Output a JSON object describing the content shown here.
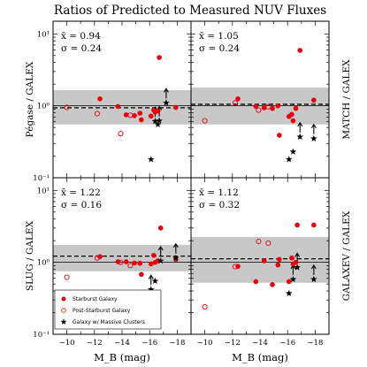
{
  "figure": {
    "title": "Ratios of Predicted to Measured NUV Fluxes"
  },
  "chart_data": [
    {
      "type": "scatter",
      "panel": "top-left",
      "ylabel": "Pégase / GALEX",
      "xlabel": "",
      "xlim": [
        -9,
        -19
      ],
      "ylim": [
        0.1,
        15
      ],
      "yscale": "log",
      "band": [
        0.55,
        1.65
      ],
      "solid_line": 1.0,
      "dashed_line": 0.94,
      "stats": {
        "mean": "x̄ = 0.94",
        "sigma": "σ = 0.24"
      },
      "series": [
        {
          "marker": "filled-circle",
          "color": "#e8000b",
          "points": [
            [
              -12.4,
              1.25
            ],
            [
              -13.7,
              0.98
            ],
            [
              -14.3,
              0.75
            ],
            [
              -14.9,
              0.73
            ],
            [
              -15.3,
              0.79
            ],
            [
              -15.4,
              0.64
            ],
            [
              -16.1,
              0.72
            ],
            [
              -16.3,
              0.87
            ],
            [
              -16.4,
              0.82
            ],
            [
              -16.6,
              0.85
            ],
            [
              -16.7,
              4.7
            ],
            [
              -17.9,
              0.95
            ]
          ]
        },
        {
          "marker": "open-circle",
          "color": "#e8000b",
          "points": [
            [
              -10.0,
              0.95
            ],
            [
              -12.2,
              0.78
            ],
            [
              -14.6,
              0.74
            ],
            [
              -13.9,
              0.41
            ]
          ]
        },
        {
          "marker": "star",
          "color": "#000000",
          "points": [
            [
              -16.1,
              0.18
            ],
            [
              -16.4,
              0.61
            ],
            [
              -16.6,
              0.55
            ],
            [
              -16.7,
              0.62
            ],
            [
              -17.2,
              1.1
            ]
          ]
        }
      ],
      "upper_arrows_x": [
        -16.4,
        -16.7,
        -17.2
      ],
      "legend": "none"
    },
    {
      "type": "scatter",
      "panel": "top-right",
      "ylabel": "MATCH / GALEX",
      "xlabel": "",
      "xlim": [
        -9,
        -19
      ],
      "ylim": [
        0.1,
        15
      ],
      "yscale": "log",
      "band": [
        0.55,
        1.8
      ],
      "solid_line": 1.0,
      "dashed_line": 1.05,
      "stats": {
        "mean": "x̄ = 1.05",
        "sigma": "σ = 0.24"
      },
      "series": [
        {
          "marker": "filled-circle",
          "color": "#e8000b",
          "points": [
            [
              -12.4,
              1.25
            ],
            [
              -13.7,
              0.98
            ],
            [
              -14.3,
              0.94
            ],
            [
              -14.9,
              0.92
            ],
            [
              -15.3,
              1.0
            ],
            [
              -15.4,
              0.39
            ],
            [
              -16.1,
              0.71
            ],
            [
              -16.3,
              0.76
            ],
            [
              -16.4,
              0.62
            ],
            [
              -16.6,
              0.92
            ],
            [
              -16.9,
              5.9
            ],
            [
              -17.9,
              1.2
            ]
          ]
        },
        {
          "marker": "open-circle",
          "color": "#e8000b",
          "points": [
            [
              -10.0,
              0.62
            ],
            [
              -12.2,
              1.1
            ],
            [
              -13.9,
              0.87
            ],
            [
              -14.6,
              0.97
            ]
          ]
        },
        {
          "marker": "star",
          "color": "#000000",
          "points": [
            [
              -16.1,
              0.18
            ],
            [
              -16.4,
              0.23
            ],
            [
              -16.9,
              0.37
            ],
            [
              -17.9,
              0.35
            ]
          ]
        }
      ],
      "upper_arrows_x": [
        -16.9,
        -17.9
      ],
      "legend": "none"
    },
    {
      "type": "scatter",
      "panel": "bottom-left",
      "ylabel": "SLUG / GALEX",
      "xlabel": "M_B (mag)",
      "xlim": [
        -9,
        -19
      ],
      "ylim": [
        0.1,
        15
      ],
      "yscale": "log",
      "band": [
        0.75,
        1.75
      ],
      "solid_line": 1.0,
      "dashed_line": 1.22,
      "stats": {
        "mean": "x̄ = 1.22",
        "sigma": "σ = 0.16"
      },
      "series": [
        {
          "marker": "filled-circle",
          "color": "#e8000b",
          "points": [
            [
              -12.4,
              1.2
            ],
            [
              -13.7,
              1.02
            ],
            [
              -14.3,
              1.02
            ],
            [
              -14.9,
              0.98
            ],
            [
              -15.3,
              0.97
            ],
            [
              -15.4,
              0.68
            ],
            [
              -16.1,
              0.95
            ],
            [
              -16.3,
              1.25
            ],
            [
              -16.4,
              1.0
            ],
            [
              -16.6,
              1.05
            ],
            [
              -16.8,
              3.0
            ],
            [
              -17.9,
              1.1
            ]
          ]
        },
        {
          "marker": "open-circle",
          "color": "#e8000b",
          "points": [
            [
              -10.0,
              0.62
            ],
            [
              -12.2,
              1.15
            ],
            [
              -13.9,
              1.0
            ],
            [
              -14.6,
              0.9
            ]
          ]
        },
        {
          "marker": "star",
          "color": "#000000",
          "points": [
            [
              -16.1,
              0.42
            ],
            [
              -16.4,
              0.55
            ],
            [
              -16.8,
              1.05
            ],
            [
              -17.9,
              1.15
            ]
          ]
        }
      ],
      "upper_arrows_x": [
        -16.1,
        -16.8,
        -17.9
      ],
      "legend": "lower-left"
    },
    {
      "type": "scatter",
      "panel": "bottom-right",
      "ylabel": "GALAXEV / GALEX",
      "xlabel": "M_B (mag)",
      "xlim": [
        -9,
        -19
      ],
      "ylim": [
        0.1,
        15
      ],
      "yscale": "log",
      "band": [
        0.52,
        2.25
      ],
      "solid_line": 1.0,
      "dashed_line": 1.12,
      "stats": {
        "mean": "x̄ = 1.12",
        "sigma": "σ = 0.32"
      },
      "series": [
        {
          "marker": "filled-circle",
          "color": "#e8000b",
          "points": [
            [
              -12.4,
              0.88
            ],
            [
              -13.7,
              0.54
            ],
            [
              -14.3,
              1.05
            ],
            [
              -14.9,
              0.49
            ],
            [
              -15.3,
              0.92
            ],
            [
              -15.4,
              1.1
            ],
            [
              -16.1,
              0.54
            ],
            [
              -16.3,
              1.15
            ],
            [
              -16.4,
              0.95
            ],
            [
              -16.6,
              1.0
            ],
            [
              -16.7,
              3.3
            ],
            [
              -17.9,
              3.3
            ]
          ]
        },
        {
          "marker": "open-circle",
          "color": "#e8000b",
          "points": [
            [
              -10.0,
              0.24
            ],
            [
              -12.2,
              0.87
            ],
            [
              -13.9,
              1.95
            ],
            [
              -14.6,
              1.85
            ]
          ]
        },
        {
          "marker": "star",
          "color": "#000000",
          "points": [
            [
              -16.1,
              0.37
            ],
            [
              -16.4,
              0.58
            ],
            [
              -16.7,
              0.85
            ],
            [
              -17.9,
              0.58
            ]
          ]
        }
      ],
      "upper_arrows_x": [
        -16.4,
        -16.7,
        -17.9
      ],
      "legend": "none"
    }
  ],
  "axes": {
    "xticks": [
      "−10",
      "−12",
      "−14",
      "−16",
      "−18"
    ],
    "yticks_left": [
      "10¹",
      "10⁰",
      "10⁻¹"
    ]
  },
  "legend": {
    "items": [
      {
        "label": "Starburst Galaxy",
        "marker": "filled-circle"
      },
      {
        "label": "Post-Starburst Galaxy",
        "marker": "open-circle"
      },
      {
        "label": "Galaxy w/ Massive Clusters",
        "marker": "star"
      }
    ]
  },
  "colors": {
    "band": "#c8c8c8",
    "starburst": "#e8000b",
    "axis": "#000000"
  }
}
